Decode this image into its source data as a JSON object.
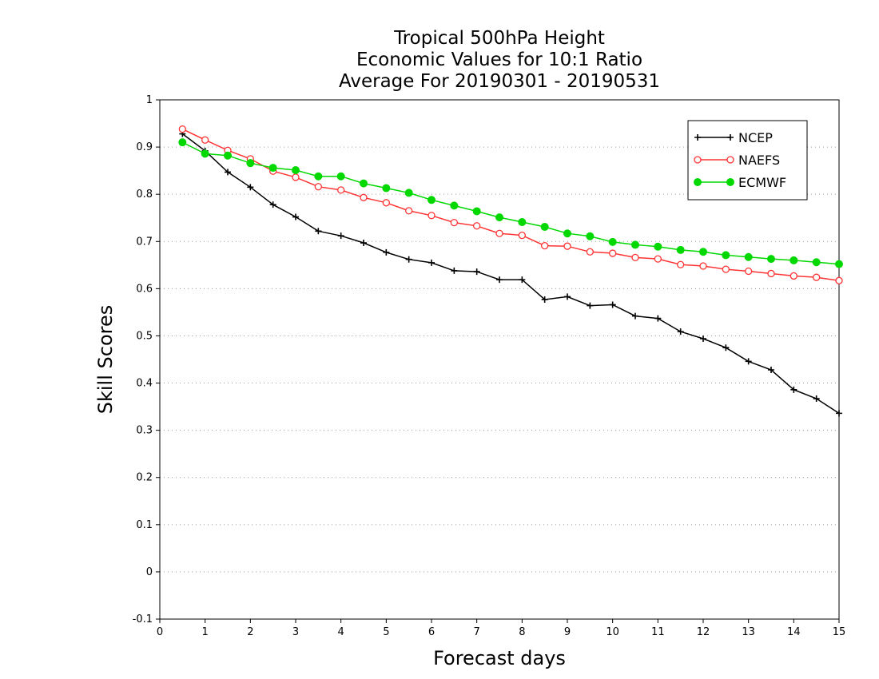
{
  "chart_data": {
    "type": "line",
    "title": [
      "Tropical 500hPa Height",
      "Economic Values for 10:1 Ratio",
      "Average For 20190301 - 20190531"
    ],
    "xlabel": "Forecast days",
    "ylabel": "Skill Scores",
    "xlim": [
      0,
      15
    ],
    "ylim": [
      -0.1,
      1
    ],
    "xticks": [
      0,
      1,
      2,
      3,
      4,
      5,
      6,
      7,
      8,
      9,
      10,
      11,
      12,
      13,
      14,
      15
    ],
    "yticks": [
      -0.1,
      0,
      0.1,
      0.2,
      0.3,
      0.4,
      0.5,
      0.6,
      0.7,
      0.8,
      0.9,
      1
    ],
    "ytick_labels": [
      "-0.1",
      "0",
      "0.1",
      "0.2",
      "0.3",
      "0.4",
      "0.5",
      "0.6",
      "0.7",
      "0.8",
      "0.9",
      "1"
    ],
    "grid": "horizontal dotted",
    "legend_position": "top-right",
    "x": [
      0.5,
      1,
      1.5,
      2,
      2.5,
      3,
      3.5,
      4,
      4.5,
      5,
      5.5,
      6,
      6.5,
      7,
      7.5,
      8,
      8.5,
      9,
      9.5,
      10,
      10.5,
      11,
      11.5,
      12,
      12.5,
      13,
      13.5,
      14,
      14.5,
      15
    ],
    "series": [
      {
        "name": "NCEP",
        "color": "#000000",
        "marker": "plus",
        "values": [
          0.928,
          0.892,
          0.847,
          0.815,
          0.778,
          0.752,
          0.722,
          0.712,
          0.697,
          0.677,
          0.662,
          0.655,
          0.638,
          0.636,
          0.619,
          0.619,
          0.577,
          0.583,
          0.564,
          0.566,
          0.542,
          0.537,
          0.509,
          0.494,
          0.475,
          0.446,
          0.428,
          0.386,
          0.367,
          0.336
        ]
      },
      {
        "name": "NAEFS",
        "color": "#ff3333",
        "marker": "open-circle",
        "values": [
          0.938,
          0.915,
          0.893,
          0.875,
          0.849,
          0.836,
          0.816,
          0.809,
          0.793,
          0.782,
          0.765,
          0.755,
          0.74,
          0.733,
          0.717,
          0.713,
          0.691,
          0.69,
          0.678,
          0.675,
          0.666,
          0.663,
          0.651,
          0.648,
          0.641,
          0.637,
          0.632,
          0.627,
          0.624,
          0.617
        ]
      },
      {
        "name": "ECMWF",
        "color": "#00d800",
        "marker": "filled-circle",
        "values": [
          0.91,
          0.886,
          0.882,
          0.866,
          0.856,
          0.851,
          0.838,
          0.838,
          0.823,
          0.813,
          0.803,
          0.788,
          0.776,
          0.764,
          0.751,
          0.741,
          0.731,
          0.717,
          0.711,
          0.699,
          0.693,
          0.689,
          0.682,
          0.678,
          0.671,
          0.667,
          0.663,
          0.66,
          0.656,
          0.652
        ]
      }
    ]
  }
}
